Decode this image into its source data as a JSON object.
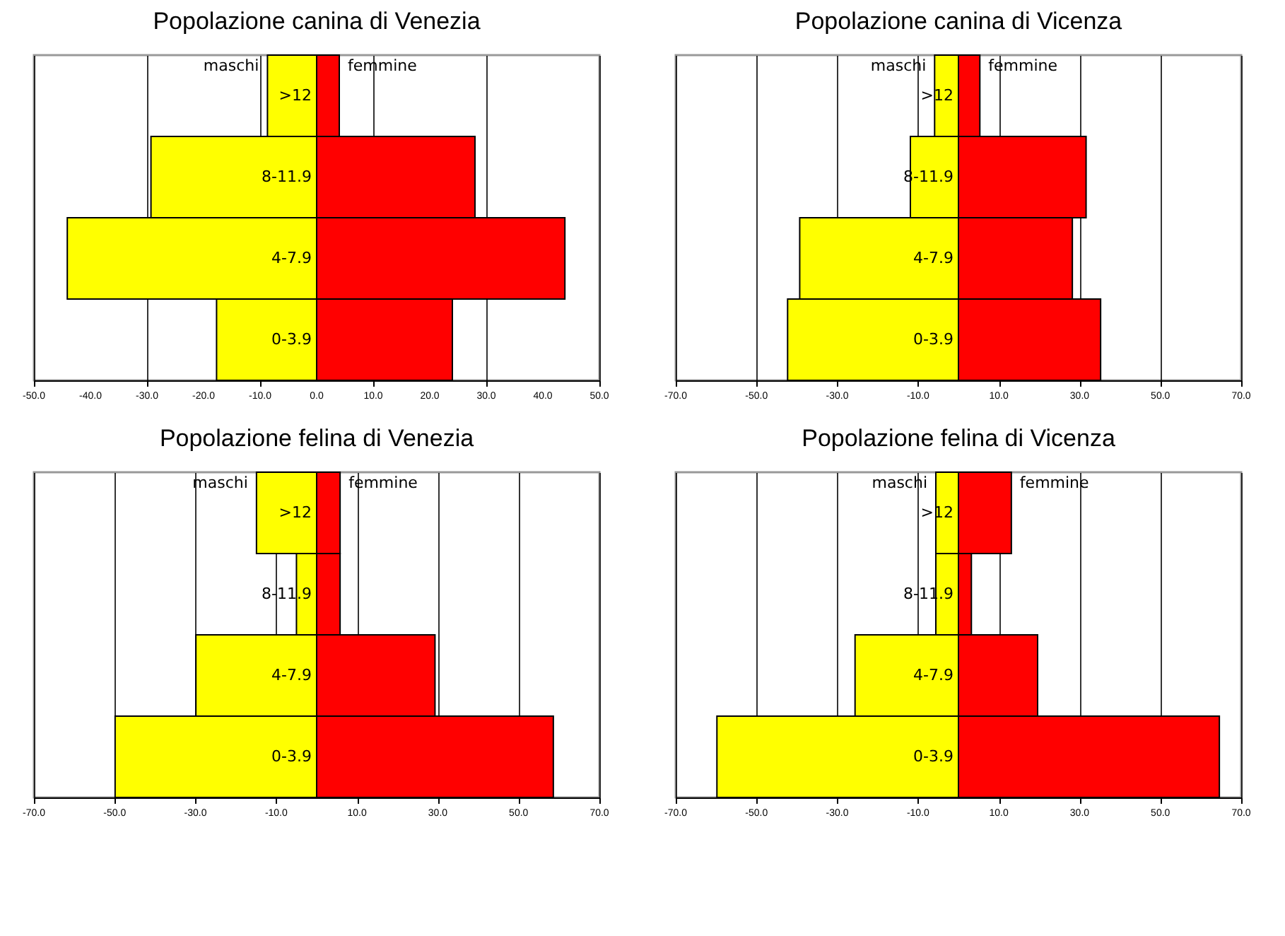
{
  "chart_data": [
    {
      "type": "bar",
      "orientation": "horizontal",
      "stacked": true,
      "title": "Popolazione canina di Venezia",
      "categories": [
        ">12",
        "8-11.9",
        "4-7.9",
        "0-3.9"
      ],
      "series": [
        {
          "name": "maschi",
          "color": "#ffff00",
          "values": [
            -8.7,
            -29.3,
            -44.1,
            -17.7
          ]
        },
        {
          "name": "femmine",
          "color": "#ff0000",
          "values": [
            4.0,
            28.0,
            43.9,
            24.0
          ]
        }
      ],
      "xlim": [
        -50,
        50
      ],
      "xticks": [
        {
          "value": -50,
          "label": "-50.0"
        },
        {
          "value": -40,
          "label": "-40.0"
        },
        {
          "value": -30,
          "label": "-30.0"
        },
        {
          "value": -20,
          "label": "-20.0"
        },
        {
          "value": -10,
          "label": "-10.0"
        },
        {
          "value": 0,
          "label": "0.0"
        },
        {
          "value": 10,
          "label": "10.0"
        },
        {
          "value": 20,
          "label": "20.0"
        },
        {
          "value": 30,
          "label": "30.0"
        },
        {
          "value": 40,
          "label": "40.0"
        },
        {
          "value": 50,
          "label": "50.0"
        }
      ],
      "grid": "x"
    },
    {
      "type": "bar",
      "orientation": "horizontal",
      "stacked": true,
      "title": "Popolazione canina di Vicenza",
      "categories": [
        ">12",
        "8-11.9",
        "4-7.9",
        "0-3.9"
      ],
      "series": [
        {
          "name": "maschi",
          "color": "#ffff00",
          "values": [
            -5.9,
            -11.9,
            -39.3,
            -42.3
          ]
        },
        {
          "name": "femmine",
          "color": "#ff0000",
          "values": [
            5.3,
            31.6,
            28.2,
            35.2
          ]
        }
      ],
      "xlim": [
        -70,
        70
      ],
      "xticks": [
        {
          "value": -70,
          "label": "-70.0"
        },
        {
          "value": -50,
          "label": "-50.0"
        },
        {
          "value": -30,
          "label": "-30.0"
        },
        {
          "value": -10,
          "label": "-10.0"
        },
        {
          "value": 10,
          "label": "10.0"
        },
        {
          "value": 30,
          "label": "30.0"
        },
        {
          "value": 50,
          "label": "50.0"
        },
        {
          "value": 70,
          "label": "70.0"
        }
      ],
      "grid": "x"
    },
    {
      "type": "bar",
      "orientation": "horizontal",
      "stacked": true,
      "title": "Popolazione felina di Venezia",
      "categories": [
        ">12",
        "8-11.9",
        "4-7.9",
        "0-3.9"
      ],
      "series": [
        {
          "name": "maschi",
          "color": "#ffff00",
          "values": [
            -14.9,
            -5.0,
            -29.9,
            -49.9
          ]
        },
        {
          "name": "femmine",
          "color": "#ff0000",
          "values": [
            5.8,
            5.8,
            29.3,
            58.6
          ]
        }
      ],
      "xlim": [
        -70,
        70
      ],
      "xticks": [
        {
          "value": -70,
          "label": "-70.0"
        },
        {
          "value": -50,
          "label": "-50.0"
        },
        {
          "value": -30,
          "label": "-30.0"
        },
        {
          "value": -10,
          "label": "-10.0"
        },
        {
          "value": 10,
          "label": "10.0"
        },
        {
          "value": 30,
          "label": "30.0"
        },
        {
          "value": 50,
          "label": "50.0"
        },
        {
          "value": 70,
          "label": "70.0"
        }
      ],
      "grid": "x"
    },
    {
      "type": "bar",
      "orientation": "horizontal",
      "stacked": true,
      "title": "Popolazione felina di Vicenza",
      "categories": [
        ">12",
        "8-11.9",
        "4-7.9",
        "0-3.9"
      ],
      "series": [
        {
          "name": "maschi",
          "color": "#ffff00",
          "values": [
            -5.6,
            -5.6,
            -25.6,
            -59.8
          ]
        },
        {
          "name": "femmine",
          "color": "#ff0000",
          "values": [
            13.1,
            3.2,
            19.6,
            64.6
          ]
        }
      ],
      "xlim": [
        -70,
        70
      ],
      "xticks": [
        {
          "value": -70,
          "label": "-70.0"
        },
        {
          "value": -50,
          "label": "-50.0"
        },
        {
          "value": -30,
          "label": "-30.0"
        },
        {
          "value": -10,
          "label": "-10.0"
        },
        {
          "value": 10,
          "label": "10.0"
        },
        {
          "value": 30,
          "label": "30.0"
        },
        {
          "value": 50,
          "label": "50.0"
        },
        {
          "value": 70,
          "label": "70.0"
        }
      ],
      "grid": "x"
    }
  ]
}
